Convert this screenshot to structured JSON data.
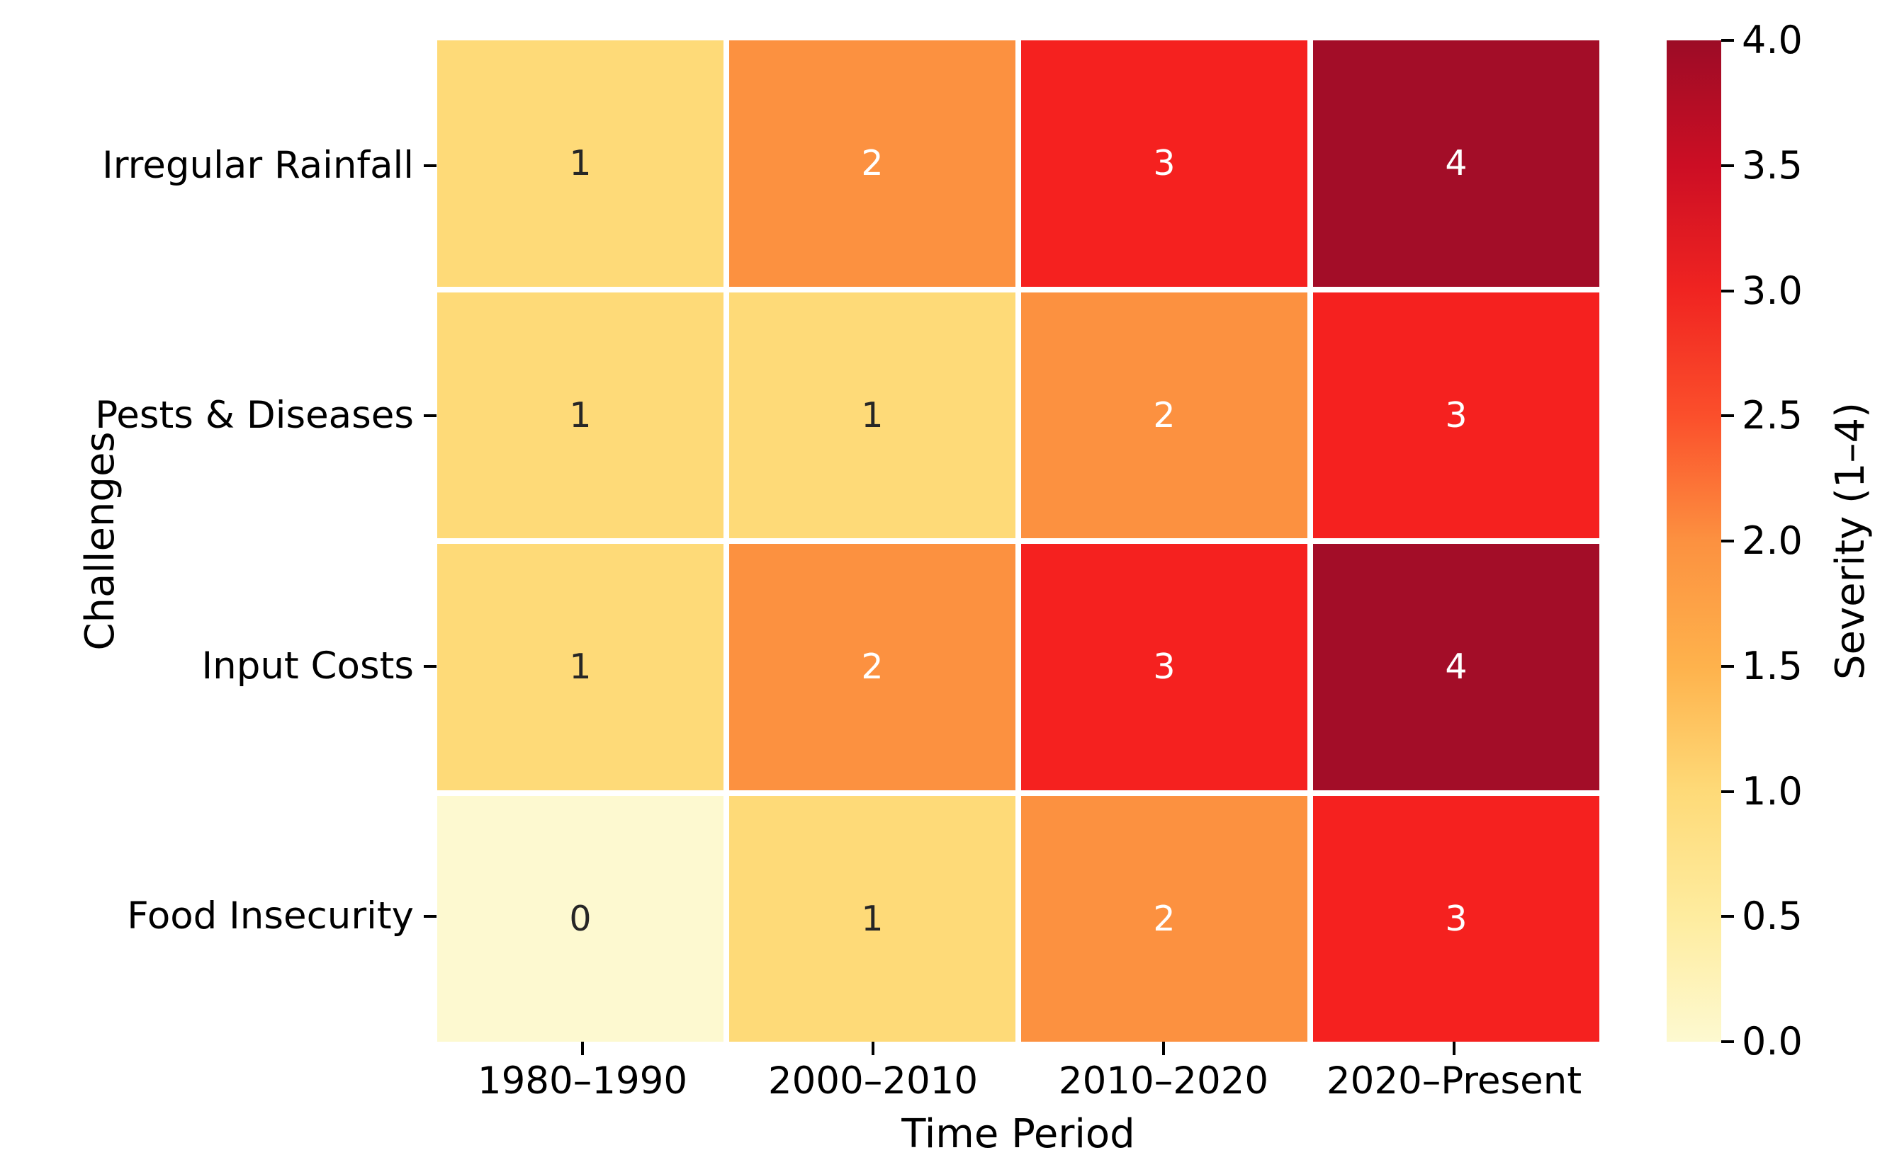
{
  "chart_data": {
    "type": "heatmap",
    "title": "",
    "xlabel": "Time Period",
    "ylabel": "Challenges",
    "colorbar_label": "Severity (1–4)",
    "x_categories": [
      "1980–1990",
      "2000–2010",
      "2010–2020",
      "2020–Present"
    ],
    "y_categories": [
      "Irregular Rainfall",
      "Pests & Diseases",
      "Input Costs",
      "Food Insecurity"
    ],
    "values": [
      [
        1,
        2,
        3,
        4
      ],
      [
        1,
        1,
        2,
        3
      ],
      [
        1,
        2,
        3,
        4
      ],
      [
        0,
        1,
        2,
        3
      ]
    ],
    "vmin": 0,
    "vmax": 4,
    "colormap_name": "YlOrRd",
    "grid_line_color": "#ffffff",
    "colorbar_tick_labels_top_to_bottom": [
      "4.0",
      "3.5",
      "3.0",
      "2.5",
      "2.0",
      "1.5",
      "1.0",
      "0.5",
      "0.0"
    ],
    "palette": {
      "0": {
        "bg": "#FDF9D0",
        "fg": "#262626"
      },
      "1": {
        "bg": "#FEDA78",
        "fg": "#262626"
      },
      "2": {
        "bg": "#FC9140",
        "fg": "#FFFFFF"
      },
      "3": {
        "bg": "#F5211F",
        "fg": "#FFFFFF"
      },
      "4": {
        "bg": "#A30D28",
        "fg": "#FFFFFF"
      }
    },
    "colorbar_gradient_bottom_to_top": [
      "#FDF9D0",
      "#FEEC9F",
      "#FEDA78",
      "#FEB24C",
      "#FC9140",
      "#FB4F2B",
      "#F02421",
      "#CC0E24",
      "#9C0C26"
    ]
  }
}
